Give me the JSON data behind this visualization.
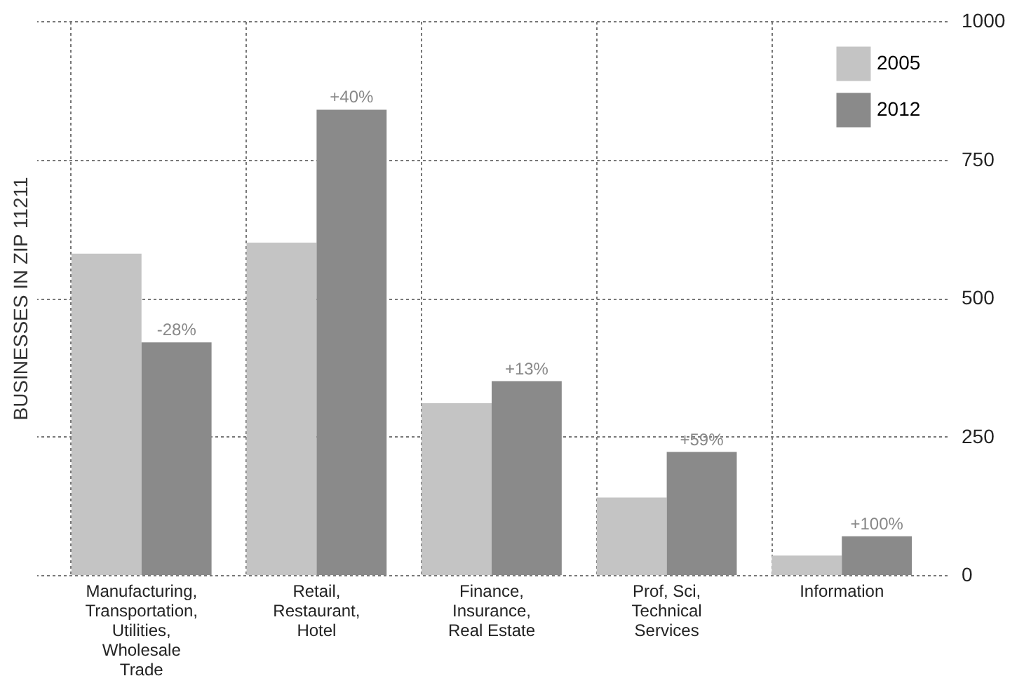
{
  "chart_data": {
    "type": "bar",
    "ylabel": "BUSINESSES IN ZIP 11211",
    "categories": [
      "Manufacturing, Transportation, Utilities, Wholesale Trade",
      "Retail, Restaurant, Hotel",
      "Finance, Insurance, Real Estate",
      "Prof, Sci, Technical Services",
      "Information"
    ],
    "series": [
      {
        "name": "2005",
        "color": "#c4c4c4",
        "values": [
          580,
          600,
          310,
          140,
          35
        ]
      },
      {
        "name": "2012",
        "color": "#8a8a8a",
        "values": [
          420,
          840,
          350,
          222,
          70
        ]
      }
    ],
    "annotations": [
      {
        "text": "-28%",
        "x": "Manufacturing, Transportation, Utilities, Wholesale Trade",
        "y": 420
      },
      {
        "text": "+40%",
        "x": "Retail, Restaurant, Hotel",
        "y": 840
      },
      {
        "text": "+13%",
        "x": "Finance, Insurance, Real Estate",
        "y": 350
      },
      {
        "text": "+59%",
        "x": "Prof, Sci, Technical Services",
        "y": 222
      },
      {
        "text": "+100%",
        "x": "Information",
        "y": 70
      }
    ],
    "ylim": [
      0,
      1000
    ],
    "yticks": [
      0,
      250,
      500,
      750,
      1000
    ],
    "grid": true,
    "legend": "top right"
  }
}
